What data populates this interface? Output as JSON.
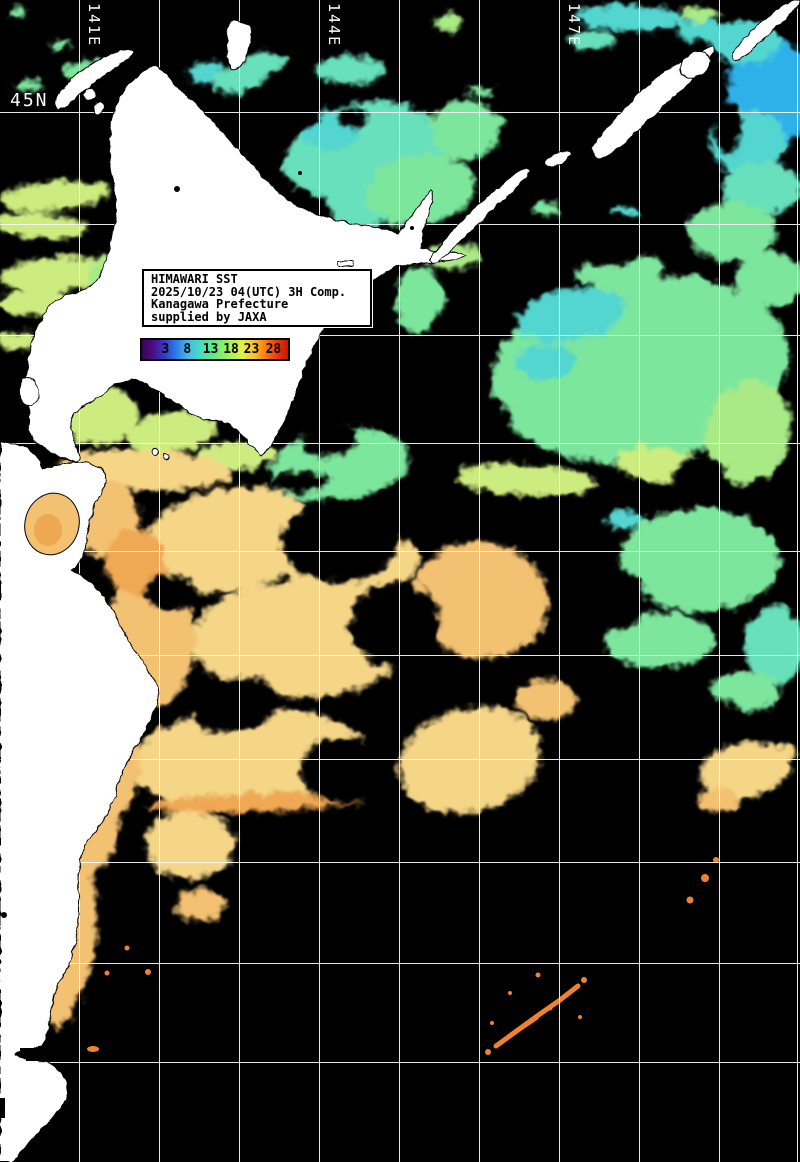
{
  "grid_labels": {
    "lat": "45N",
    "lon": [
      "141E",
      "144E",
      "147E"
    ]
  },
  "info_box": {
    "lines": [
      "HIMAWARI SST",
      "2025/10/23 04(UTC) 3H Comp.",
      "Kanagawa Prefecture",
      "supplied by JAXA"
    ]
  },
  "colorbar": {
    "tick_labels": [
      "3",
      "8",
      "13",
      "18",
      "23",
      "28"
    ],
    "gradient_colors": [
      "#35064f",
      "#4b0d86",
      "#3639c8",
      "#2a7ae6",
      "#3fb6e8",
      "#46d8c8",
      "#52e89a",
      "#7fee6e",
      "#b2f256",
      "#e8ee42",
      "#fcbf2a",
      "#f97c12",
      "#ee3a06",
      "#c81500"
    ]
  },
  "palette": {
    "blue": "#2fb0e8",
    "cyan": "#52d6cf",
    "teal": "#68e0bb",
    "green": "#7de69d",
    "light_green": "#a9ea86",
    "yellow_green": "#cdec7f",
    "sand": "#f5d687",
    "light_orange": "#f3c172",
    "orange": "#efa852",
    "warm_streak": "#f0822e",
    "land": "#ffffff",
    "no_data": "#000000",
    "grid": "#ffffff"
  },
  "chart_data": {
    "type": "heatmap",
    "title": "HIMAWARI SST",
    "legend_ticks_celsius": [
      3,
      8,
      13,
      18,
      23,
      28
    ],
    "legend_position": "upper-left overlay",
    "grid": "on"
  }
}
